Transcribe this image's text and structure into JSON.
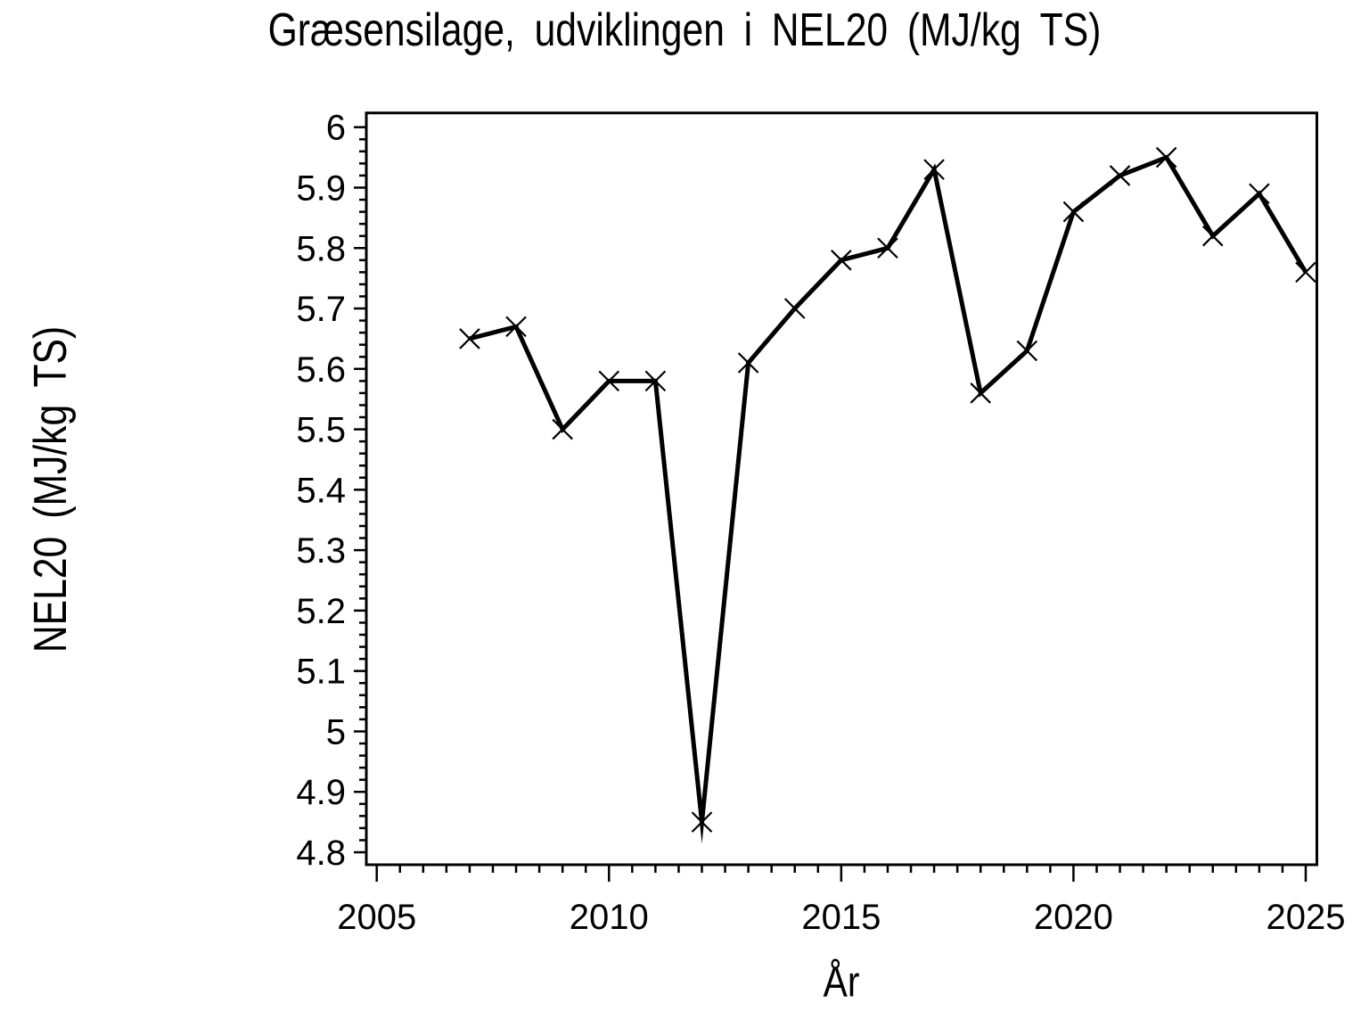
{
  "page": {
    "background_color": "#ffffff",
    "foreground_color": "#000000"
  },
  "chart_data": {
    "type": "line",
    "title": "Græsensilage, udviklingen i NEL20 (MJ/kg TS)",
    "xlabel": "År",
    "ylabel": "NEL20 (MJ/kg TS)",
    "x": [
      2007,
      2008,
      2009,
      2010,
      2011,
      2012,
      2013,
      2014,
      2015,
      2016,
      2017,
      2018,
      2019,
      2020,
      2021,
      2022,
      2023,
      2024,
      2025
    ],
    "y": [
      5.65,
      5.67,
      5.5,
      5.58,
      5.58,
      4.85,
      5.61,
      5.7,
      5.78,
      5.8,
      5.93,
      5.56,
      5.63,
      5.86,
      5.92,
      5.95,
      5.82,
      5.89,
      5.76
    ],
    "line_color": "#000000",
    "marker": "x",
    "grid": false,
    "legend": "none",
    "xlim": [
      2004.77,
      2025.24
    ],
    "ylim": [
      4.78,
      6.02
    ],
    "x_ticks": {
      "major_values": [
        2005,
        2010,
        2015,
        2020,
        2025
      ],
      "major_labels": [
        "2005",
        "2010",
        "2015",
        "2020",
        "2025"
      ],
      "minor_step": 0.5,
      "minor_range": [
        2005,
        2025
      ]
    },
    "y_ticks": {
      "major_values": [
        4.8,
        4.9,
        5.0,
        5.1,
        5.2,
        5.3,
        5.4,
        5.5,
        5.6,
        5.7,
        5.8,
        5.9,
        6.0
      ],
      "major_labels": [
        "4.8",
        "4.9",
        "5",
        "5.1",
        "5.2",
        "5.3",
        "5.4",
        "5.5",
        "5.6",
        "5.7",
        "5.8",
        "5.9",
        "6"
      ],
      "minor_step": 0.02,
      "minor_range": [
        4.8,
        6.0
      ]
    }
  }
}
